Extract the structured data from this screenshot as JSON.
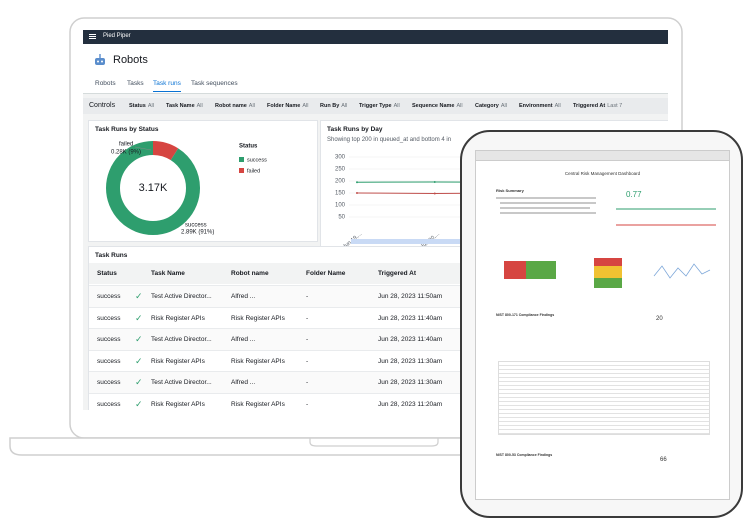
{
  "laptop": {
    "app_name": "Pied Piper",
    "page_title": "Robots",
    "tabs": [
      "Robots",
      "Tasks",
      "Task runs",
      "Task sequences"
    ],
    "active_tab": 2,
    "controls_label": "Controls",
    "filters": [
      {
        "label": "Status",
        "value": "All"
      },
      {
        "label": "Task Name",
        "value": "All"
      },
      {
        "label": "Robot name",
        "value": "All"
      },
      {
        "label": "Folder Name",
        "value": "All"
      },
      {
        "label": "Run By",
        "value": "All"
      },
      {
        "label": "Trigger Type",
        "value": "All"
      },
      {
        "label": "Sequence Name",
        "value": "All"
      },
      {
        "label": "Category",
        "value": "All"
      },
      {
        "label": "Environment",
        "value": "All"
      },
      {
        "label": "Triggered At",
        "value": "Last 7"
      }
    ],
    "donut": {
      "title": "Task Runs by Status",
      "total": "3.17K",
      "legend_title": "Status",
      "segments": [
        {
          "name": "success",
          "label": "2.89K (91%)",
          "value": 91,
          "color": "#2e9e6e"
        },
        {
          "name": "failed",
          "label": "0.28K (9%)",
          "value": 9,
          "color": "#d64541"
        }
      ]
    },
    "line_chart": {
      "title": "Task Runs by Day",
      "subtitle": "Showing top 200 in queued_at and bottom 4 in",
      "categories": [
        "Jun 19,...",
        "Jun 20,...",
        "Jun 21,...",
        "Jun 22,...",
        "Jun 23,..."
      ],
      "ylim": [
        0,
        300
      ],
      "yticks": [
        50,
        100,
        150,
        200,
        250,
        300
      ],
      "series": [
        {
          "color": "#2e9e6e",
          "values": [
            195,
            196,
            195,
            194,
            195
          ]
        },
        {
          "color": "#c0504d",
          "values": [
            150,
            148,
            150,
            149,
            150
          ]
        }
      ]
    },
    "table": {
      "title": "Task Runs",
      "columns": [
        "Status",
        "Task Name",
        "Robot name",
        "Folder Name",
        "Triggered At"
      ],
      "rows": [
        [
          "success",
          "Test Active Director...",
          "Alfred ...",
          "-",
          "Jun 28, 2023 11:50am"
        ],
        [
          "success",
          "Risk Register APIs",
          "Risk Register APIs",
          "-",
          "Jun 28, 2023 11:40am"
        ],
        [
          "success",
          "Test Active Director...",
          "Alfred ...",
          "-",
          "Jun 28, 2023 11:40am"
        ],
        [
          "success",
          "Risk Register APIs",
          "Risk Register APIs",
          "-",
          "Jun 28, 2023 11:30am"
        ],
        [
          "success",
          "Test Active Director...",
          "Alfred ...",
          "-",
          "Jun 28, 2023 11:30am"
        ],
        [
          "success",
          "Risk Register APIs",
          "Risk Register APIs",
          "-",
          "Jun 28, 2023 11:20am"
        ]
      ]
    }
  },
  "tablet": {
    "title": "Central Risk Management Dashboard",
    "section": "Risk Summary",
    "score": "0.77",
    "findings": [
      {
        "title": "NIST 800-171 Compliance Findings",
        "count": "20"
      },
      {
        "title": "NIST 800-53 Compliance Findings",
        "count": "66"
      }
    ]
  }
}
